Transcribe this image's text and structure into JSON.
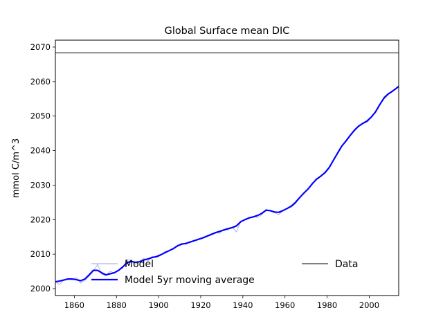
{
  "chart_data": {
    "type": "line",
    "title": "Global Surface mean DIC",
    "xlabel": "",
    "ylabel": "mmol C/m^3",
    "xlim": [
      1851,
      2014
    ],
    "ylim": [
      1998,
      2072
    ],
    "x_ticks": [
      1860,
      1880,
      1900,
      1920,
      1940,
      1960,
      1980,
      2000
    ],
    "y_ticks": [
      2000,
      2010,
      2020,
      2030,
      2040,
      2050,
      2060,
      2070
    ],
    "grid": false,
    "legend": "lower-right, two columns",
    "colors": {
      "model": "#9aa0e6",
      "moving_average": "#0000ff",
      "data": "#000000"
    },
    "series": [
      {
        "name": "Model",
        "style": "thin",
        "x": [
          1851,
          1853,
          1855,
          1857,
          1859,
          1861,
          1863,
          1865,
          1867,
          1869,
          1871,
          1873,
          1875,
          1877,
          1879,
          1881,
          1883,
          1885,
          1887,
          1889,
          1891,
          1893,
          1895,
          1897,
          1899,
          1901,
          1903,
          1905,
          1907,
          1909,
          1911,
          1913,
          1915,
          1917,
          1919,
          1921,
          1923,
          1925,
          1927,
          1929,
          1931,
          1933,
          1935,
          1937,
          1939,
          1941,
          1943,
          1945,
          1947,
          1949,
          1951,
          1953,
          1955,
          1957,
          1959,
          1961,
          1963,
          1965,
          1967,
          1969,
          1971,
          1973,
          1975,
          1977,
          1979,
          1981,
          1983,
          1985,
          1987,
          1989,
          1991,
          1993,
          1995,
          1997,
          1999,
          2001,
          2003,
          2005,
          2007,
          2009,
          2011,
          2013,
          2014
        ],
        "values": [
          2002.0,
          2001.2,
          2002.5,
          2003.0,
          2002.6,
          2003.2,
          2001.6,
          2002.4,
          2003.6,
          2005.0,
          2007.0,
          2004.2,
          2003.8,
          2005.0,
          2004.6,
          2005.4,
          2006.0,
          2008.6,
          2008.0,
          2007.0,
          2007.8,
          2008.8,
          2008.0,
          2009.4,
          2009.0,
          2009.6,
          2010.8,
          2011.0,
          2011.4,
          2012.4,
          2013.2,
          2012.8,
          2013.6,
          2013.8,
          2014.4,
          2014.6,
          2015.2,
          2015.6,
          2016.4,
          2016.0,
          2017.2,
          2017.0,
          2017.8,
          2016.4,
          2019.6,
          2020.0,
          2020.4,
          2021.0,
          2020.6,
          2021.4,
          2023.0,
          2022.6,
          2022.0,
          2021.4,
          2022.6,
          2023.2,
          2023.6,
          2024.6,
          2026.4,
          2027.8,
          2029.0,
          2030.4,
          2032.0,
          2032.4,
          2033.8,
          2035.0,
          2037.4,
          2039.0,
          2041.4,
          2042.6,
          2044.6,
          2045.6,
          2047.2,
          2047.8,
          2048.2,
          2049.6,
          2051.4,
          2053.4,
          2055.6,
          2056.6,
          2057.2,
          2058.2,
          2058.6
        ]
      },
      {
        "name": "Model 5yr moving average",
        "style": "thick",
        "x": [
          1851,
          1853,
          1855,
          1857,
          1859,
          1861,
          1863,
          1865,
          1867,
          1869,
          1871,
          1873,
          1875,
          1877,
          1879,
          1881,
          1883,
          1885,
          1887,
          1889,
          1891,
          1893,
          1895,
          1897,
          1899,
          1901,
          1903,
          1905,
          1907,
          1909,
          1911,
          1913,
          1915,
          1917,
          1919,
          1921,
          1923,
          1925,
          1927,
          1929,
          1931,
          1933,
          1935,
          1937,
          1939,
          1941,
          1943,
          1945,
          1947,
          1949,
          1951,
          1953,
          1955,
          1957,
          1959,
          1961,
          1963,
          1965,
          1967,
          1969,
          1971,
          1973,
          1975,
          1977,
          1979,
          1981,
          1983,
          1985,
          1987,
          1989,
          1991,
          1993,
          1995,
          1997,
          1999,
          2001,
          2003,
          2005,
          2007,
          2009,
          2011,
          2013,
          2014
        ],
        "values": [
          2002.0,
          2002.2,
          2002.5,
          2002.8,
          2002.8,
          2002.6,
          2002.3,
          2002.8,
          2004.0,
          2005.3,
          2005.3,
          2004.6,
          2004.0,
          2004.3,
          2004.6,
          2005.3,
          2006.3,
          2007.5,
          2007.9,
          2007.6,
          2007.8,
          2008.3,
          2008.6,
          2009.0,
          2009.3,
          2009.8,
          2010.4,
          2011.0,
          2011.6,
          2012.4,
          2012.9,
          2013.1,
          2013.5,
          2013.9,
          2014.3,
          2014.7,
          2015.2,
          2015.7,
          2016.2,
          2016.6,
          2017.0,
          2017.4,
          2017.7,
          2018.2,
          2019.4,
          2020.0,
          2020.5,
          2020.8,
          2021.2,
          2021.8,
          2022.7,
          2022.6,
          2022.2,
          2022.1,
          2022.6,
          2023.2,
          2023.9,
          2025.0,
          2026.4,
          2027.7,
          2028.9,
          2030.4,
          2031.7,
          2032.6,
          2033.6,
          2035.1,
          2037.2,
          2039.3,
          2041.3,
          2042.8,
          2044.4,
          2045.9,
          2047.1,
          2047.9,
          2048.6,
          2049.7,
          2051.2,
          2053.3,
          2055.2,
          2056.4,
          2057.2,
          2058.1,
          2058.6
        ]
      },
      {
        "name": "Data",
        "style": "hline",
        "x": [
          1851,
          2014
        ],
        "values": [
          2068.3,
          2068.3
        ]
      }
    ]
  }
}
